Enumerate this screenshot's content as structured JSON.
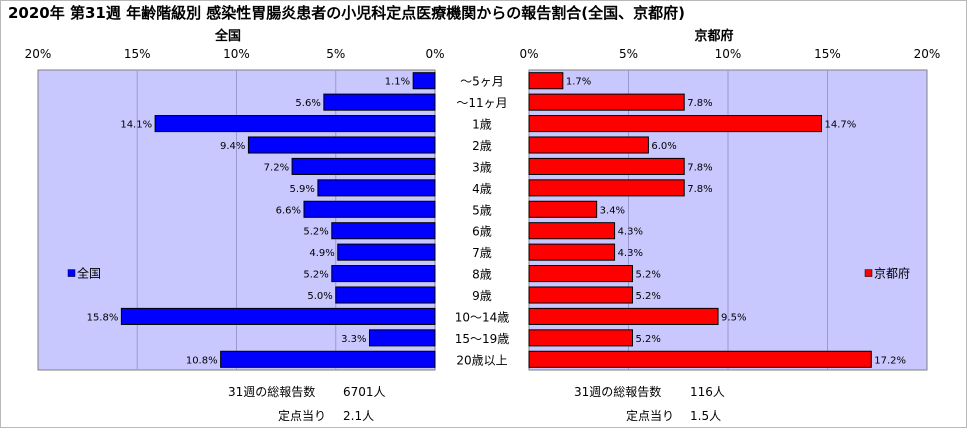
{
  "title": "2020年 第31週 年齢階級別 感染性胃腸炎患者の小児科定点医療機関からの報告割合(全国、京都府)",
  "chart_data": {
    "type": "bar",
    "orientation": "horizontal",
    "categories": [
      "～5ヶ月",
      "～11ヶ月",
      "1歳",
      "2歳",
      "3歳",
      "4歳",
      "5歳",
      "6歳",
      "7歳",
      "8歳",
      "9歳",
      "10～14歳",
      "15～19歳",
      "20歳以上"
    ],
    "series": [
      {
        "name": "全国",
        "values": [
          1.1,
          5.6,
          14.1,
          9.4,
          7.2,
          5.9,
          6.6,
          5.2,
          4.9,
          5.2,
          5.0,
          15.8,
          3.3,
          10.8
        ],
        "value_labels": [
          "1.1%",
          "5.6%",
          "14.1%",
          "9.4%",
          "7.2%",
          "5.9%",
          "6.6%",
          "5.2%",
          "4.9%",
          "5.2%",
          "5.0%",
          "15.8%",
          "3.3%",
          "10.8%"
        ]
      },
      {
        "name": "京都府",
        "values": [
          1.7,
          7.8,
          14.7,
          6.0,
          7.8,
          7.8,
          3.4,
          4.3,
          4.3,
          5.2,
          5.2,
          9.5,
          5.2,
          17.2
        ],
        "value_labels": [
          "1.7%",
          "7.8%",
          "14.7%",
          "6.0%",
          "7.8%",
          "7.8%",
          "3.4%",
          "4.3%",
          "4.3%",
          "5.2%",
          "5.2%",
          "9.5%",
          "5.2%",
          "17.2%"
        ]
      }
    ],
    "panels": [
      {
        "label": "全国",
        "xlim": [
          0,
          20
        ],
        "direction": "reversed",
        "legend": "全国",
        "legend_position": "left"
      },
      {
        "label": "京都府",
        "xlim": [
          0,
          20
        ],
        "direction": "normal",
        "legend": "京都府",
        "legend_position": "right"
      }
    ],
    "x_tick_labels": [
      "0%",
      "5%",
      "10%",
      "15%",
      "20%"
    ],
    "grid": true,
    "colors": {
      "全国": "#0000ff",
      "京都府": "#ff0000",
      "plot_bg": "#c8c8ff"
    }
  },
  "stats": {
    "national": {
      "weekly_label": "31週の総報告数",
      "weekly_value": "6701人",
      "per_site_label": "定点当り",
      "per_site_value": "2.1人"
    },
    "kyoto": {
      "weekly_label": "31週の総報告数",
      "weekly_value": "116人",
      "per_site_label": "定点当り",
      "per_site_value": "1.5人"
    }
  }
}
